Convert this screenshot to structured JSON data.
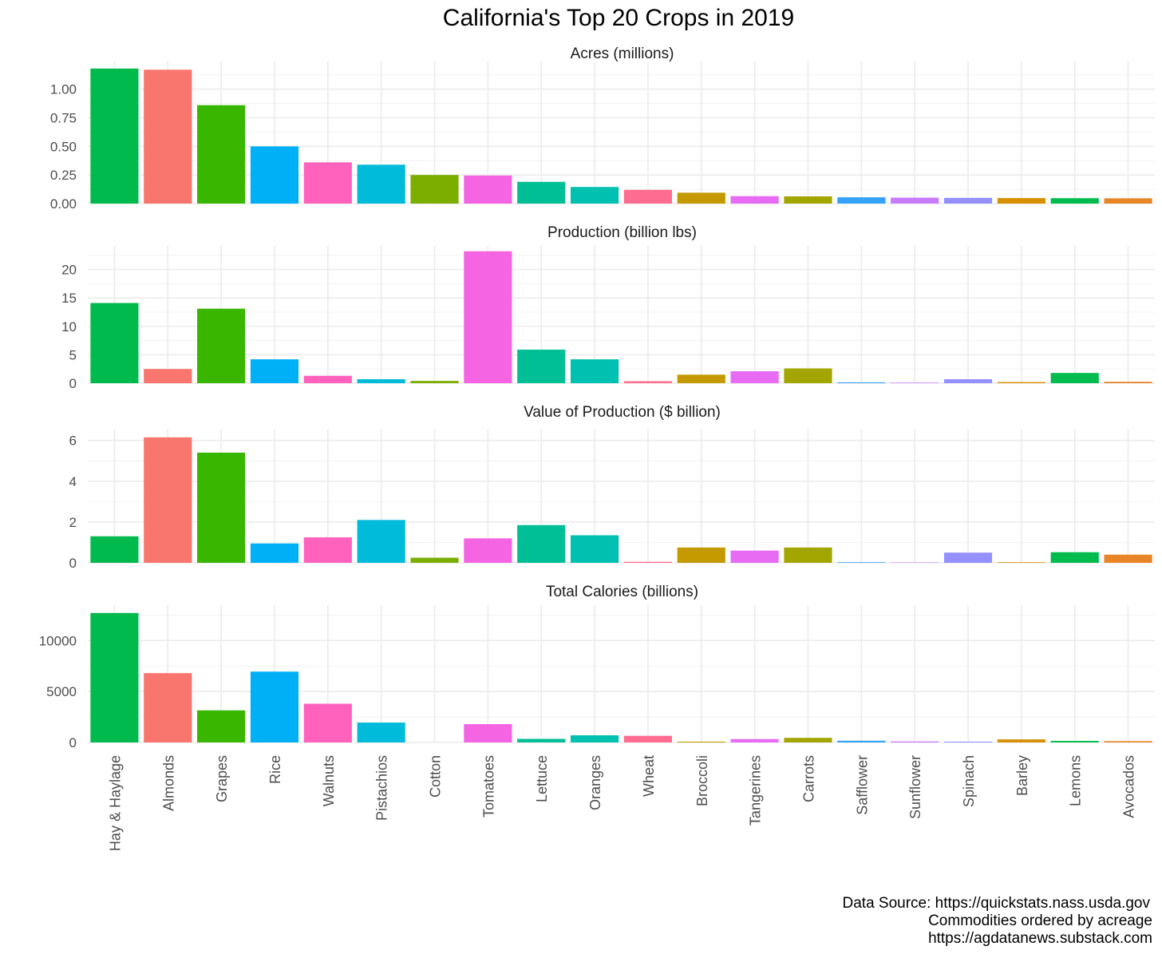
{
  "chart_data": {
    "type": "bar",
    "title": "California's Top 20 Crops in 2019",
    "categories": [
      "Hay & Haylage",
      "Almonds",
      "Grapes",
      "Rice",
      "Walnuts",
      "Pistachios",
      "Cotton",
      "Tomatoes",
      "Lettuce",
      "Oranges",
      "Wheat",
      "Broccoli",
      "Tangerines",
      "Carrots",
      "Safflower",
      "Sunflower",
      "Spinach",
      "Barley",
      "Lemons",
      "Avocados"
    ],
    "colors": [
      "#00BA4E",
      "#F8766D",
      "#39B600",
      "#00B0F6",
      "#FF62BC",
      "#00BBDA",
      "#7CAE00",
      "#F564E3",
      "#00BF96",
      "#00C0AF",
      "#FF6C92",
      "#C49A00",
      "#E76BF3",
      "#A3A500",
      "#35A2FF",
      "#C77CFF",
      "#9590FF",
      "#D89000",
      "#00BB4E",
      "#E88526"
    ],
    "series": [
      {
        "name": "Acres (millions)",
        "yticks": [
          "0.00",
          "0.25",
          "0.50",
          "0.75",
          "1.00"
        ],
        "ylim": [
          0,
          1.2
        ],
        "values": [
          1.18,
          1.17,
          0.86,
          0.5,
          0.36,
          0.34,
          0.25,
          0.245,
          0.19,
          0.145,
          0.12,
          0.095,
          0.065,
          0.063,
          0.055,
          0.052,
          0.05,
          0.048,
          0.047,
          0.046
        ]
      },
      {
        "name": "Production (billion lbs)",
        "yticks": [
          "0",
          "5",
          "10",
          "15",
          "20"
        ],
        "ylim": [
          0,
          23.3
        ],
        "values": [
          14.1,
          2.5,
          13.1,
          4.2,
          1.3,
          0.7,
          0.4,
          23.2,
          5.9,
          4.2,
          0.35,
          1.5,
          2.1,
          2.6,
          0.15,
          0.1,
          0.7,
          0.2,
          1.8,
          0.25
        ]
      },
      {
        "name": "Value of Production ($ billion)",
        "yticks": [
          "0",
          "2",
          "4",
          "6"
        ],
        "ylim": [
          0,
          6.3
        ],
        "values": [
          1.3,
          6.15,
          5.4,
          0.95,
          1.25,
          2.1,
          0.25,
          1.2,
          1.85,
          1.35,
          0.05,
          0.75,
          0.6,
          0.75,
          0.03,
          0.02,
          0.5,
          0.03,
          0.52,
          0.4
        ]
      },
      {
        "name": "Total Calories (billions)",
        "yticks": [
          "0",
          "5000",
          "10000"
        ],
        "ylim": [
          0,
          13000
        ],
        "values": [
          12700,
          6800,
          3150,
          6950,
          3800,
          1950,
          0,
          1800,
          350,
          700,
          650,
          80,
          330,
          450,
          170,
          100,
          80,
          300,
          150,
          130
        ]
      }
    ]
  },
  "caption": {
    "line1": "Data Source: https://quickstats.nass.usda.gov",
    "line2": "Commodities ordered by acreage",
    "line3": "https://agdatanews.substack.com"
  }
}
